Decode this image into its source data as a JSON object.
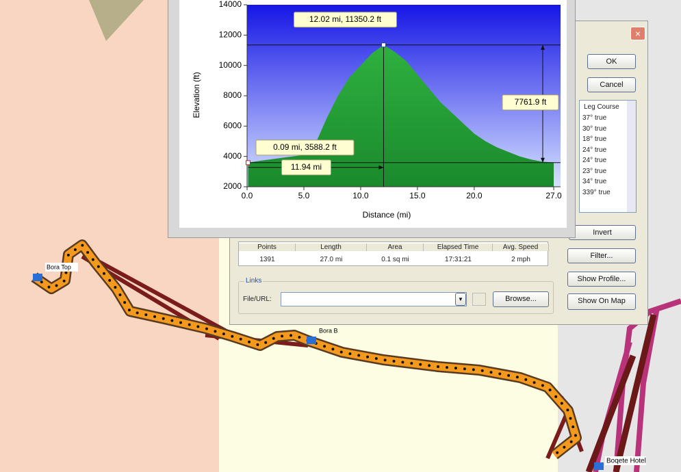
{
  "map": {
    "waypoints": [
      "Bora Top",
      "Bora B",
      "Boqete Hotel"
    ]
  },
  "dialog": {
    "buttons": [
      "OK",
      "Cancel",
      "Invert",
      "Filter...",
      "Show Profile...",
      "Show On Map"
    ],
    "list": {
      "header": "Leg Course",
      "items": [
        "37° true",
        "30° true",
        "18° true",
        "24° true",
        "24° true",
        "23° true",
        "34° true",
        "339° true"
      ]
    },
    "stats": {
      "headers": [
        "Points",
        "Length",
        "Area",
        "Elapsed Time",
        "Avg. Speed"
      ],
      "values": [
        "1391",
        "27.0 mi",
        "0.1 sq mi",
        "17:31:21",
        "2 mph"
      ]
    },
    "links": {
      "title": "Links",
      "label": "File/URL:",
      "browse": "Browse..."
    }
  },
  "chart_data": {
    "type": "area",
    "xlabel": "Distance  (mi)",
    "ylabel": "Elevation (ft)",
    "x": [
      0.09,
      1,
      3,
      5,
      6,
      7,
      8,
      9,
      10,
      11,
      12.02,
      13,
      14,
      15,
      16,
      17,
      18,
      19,
      20,
      21,
      22,
      23,
      24,
      25,
      26,
      27
    ],
    "values": [
      3588.2,
      3700,
      3900,
      4100,
      4800,
      6500,
      8000,
      9200,
      10000,
      10800,
      11350.2,
      10900,
      10300,
      9400,
      8500,
      7600,
      6900,
      6200,
      5500,
      5000,
      4600,
      4300,
      4000,
      3800,
      3650,
      3600
    ],
    "color": "#22a13c",
    "xlim": [
      0,
      27.6
    ],
    "ylim": [
      2000,
      14000
    ],
    "xticks": [
      {
        "value": 0,
        "label": "0.0"
      },
      {
        "value": 5,
        "label": "5.0"
      },
      {
        "value": 10,
        "label": "10.0"
      },
      {
        "value": 15,
        "label": "15.0"
      },
      {
        "value": 20,
        "label": "20.0"
      },
      {
        "value": 27,
        "label": "27.0"
      }
    ],
    "yticks": [
      2000,
      4000,
      6000,
      8000,
      10000,
      12000,
      14000
    ],
    "markers": [
      {
        "x": 0.09,
        "y": 3588.2,
        "label": "0.09 mi, 3588.2 ft"
      },
      {
        "x": 12.02,
        "y": 11350.2,
        "label": "12.02 mi, 11350.2 ft"
      }
    ],
    "annotations": [
      "11.94 mi",
      "7761.9 ft"
    ]
  }
}
